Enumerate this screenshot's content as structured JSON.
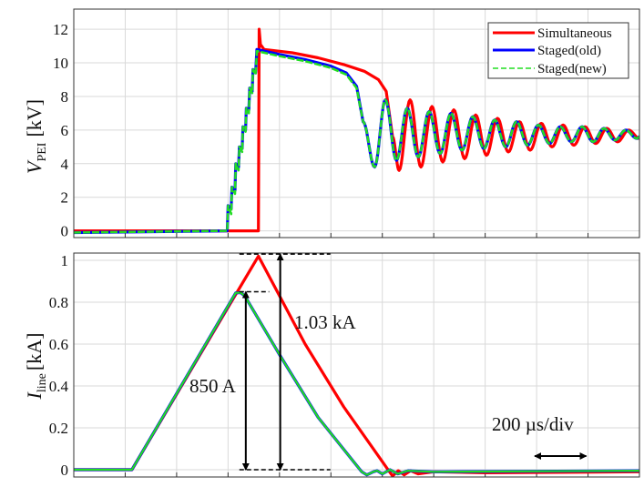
{
  "colors": {
    "simultaneous": "#ff0000",
    "staged_old": "#0000ff",
    "staged_new": "#22dd22",
    "grid": "#d9d9d9"
  },
  "chart_data": [
    {
      "type": "line",
      "title": "",
      "ylabel": {
        "main": "V",
        "sub": "PEI",
        "unit": "[kV]"
      },
      "xlabel": "",
      "x_unit": "µs",
      "xlim": [
        0,
        2200
      ],
      "ylim": [
        -0.4,
        13.2
      ],
      "xticks": [
        0,
        200,
        400,
        600,
        800,
        1000,
        1200,
        1400,
        1600,
        1800,
        2000,
        2200
      ],
      "yticks": [
        0,
        2,
        4,
        6,
        8,
        10,
        12
      ],
      "grid": true,
      "legend": {
        "placement": "top-right",
        "entries": [
          "Simultaneous",
          "Staged(old)",
          "Staged(new)"
        ]
      },
      "series": [
        {
          "name": "Simultaneous",
          "key": "simultaneous",
          "points": [
            [
              0,
              0
            ],
            [
              718,
              0
            ],
            [
              721,
              12.0
            ],
            [
              726,
              11.1
            ],
            [
              740,
              10.8
            ],
            [
              850,
              10.6
            ],
            [
              950,
              10.3
            ],
            [
              1050,
              9.9
            ],
            [
              1130,
              9.5
            ],
            [
              1185,
              9.0
            ],
            [
              1215,
              8.3
            ],
            [
              1240,
              5.6
            ]
          ],
          "oscillation": [
            [
              1265,
              3.6
            ],
            [
              1308,
              7.8
            ],
            [
              1350,
              3.8
            ],
            [
              1393,
              7.4
            ],
            [
              1435,
              4.1
            ],
            [
              1478,
              7.2
            ],
            [
              1520,
              4.3
            ],
            [
              1563,
              6.9
            ],
            [
              1605,
              4.5
            ],
            [
              1648,
              6.7
            ],
            [
              1690,
              4.7
            ],
            [
              1733,
              6.5
            ],
            [
              1775,
              4.8
            ],
            [
              1818,
              6.4
            ],
            [
              1860,
              5.0
            ],
            [
              1903,
              6.3
            ],
            [
              1945,
              5.1
            ],
            [
              1988,
              6.2
            ],
            [
              2030,
              5.2
            ],
            [
              2073,
              6.1
            ],
            [
              2115,
              5.3
            ],
            [
              2158,
              6.0
            ],
            [
              2200,
              5.5
            ]
          ]
        },
        {
          "name": "Staged(old)",
          "key": "staged_old",
          "points": [
            [
              0,
              -0.1
            ],
            [
              597,
              0
            ],
            [
              600,
              1.5
            ],
            [
              612,
              1.3
            ],
            [
              615,
              2.6
            ],
            [
              627,
              2.4
            ],
            [
              630,
              4.0
            ],
            [
              641,
              3.8
            ],
            [
              644,
              5.0
            ],
            [
              655,
              4.9
            ],
            [
              658,
              6.2
            ],
            [
              668,
              6.0
            ],
            [
              671,
              7.3
            ],
            [
              681,
              7.2
            ],
            [
              684,
              8.5
            ],
            [
              694,
              8.3
            ],
            [
              697,
              9.6
            ],
            [
              707,
              9.4
            ],
            [
              712,
              10.8
            ],
            [
              800,
              10.5
            ],
            [
              900,
              10.2
            ],
            [
              1000,
              9.8
            ],
            [
              1060,
              9.4
            ],
            [
              1100,
              8.6
            ],
            [
              1125,
              6.5
            ]
          ],
          "oscillation": [
            [
              1170,
              3.8
            ],
            [
              1212,
              7.8
            ],
            [
              1255,
              4.2
            ],
            [
              1297,
              7.3
            ],
            [
              1340,
              4.4
            ],
            [
              1382,
              7.1
            ],
            [
              1425,
              4.6
            ],
            [
              1467,
              7.0
            ],
            [
              1510,
              4.8
            ],
            [
              1552,
              6.8
            ],
            [
              1595,
              4.9
            ],
            [
              1637,
              6.6
            ],
            [
              1680,
              5.0
            ],
            [
              1722,
              6.5
            ],
            [
              1765,
              5.1
            ],
            [
              1807,
              6.3
            ],
            [
              1850,
              5.2
            ],
            [
              1892,
              6.2
            ],
            [
              1935,
              5.3
            ],
            [
              1977,
              6.2
            ],
            [
              2020,
              5.3
            ],
            [
              2062,
              6.1
            ],
            [
              2105,
              5.4
            ],
            [
              2147,
              6.0
            ],
            [
              2190,
              5.5
            ],
            [
              2200,
              5.6
            ]
          ]
        },
        {
          "name": "Staged(new)",
          "key": "staged_new",
          "dashed": true,
          "points": [
            [
              0,
              -0.1
            ],
            [
              597,
              0
            ],
            [
              600,
              1.5
            ],
            [
              612,
              1.0
            ],
            [
              615,
              2.6
            ],
            [
              627,
              2.2
            ],
            [
              630,
              4.0
            ],
            [
              641,
              3.6
            ],
            [
              644,
              5.0
            ],
            [
              655,
              4.7
            ],
            [
              658,
              6.2
            ],
            [
              668,
              5.9
            ],
            [
              671,
              7.3
            ],
            [
              681,
              7.0
            ],
            [
              684,
              8.5
            ],
            [
              694,
              8.2
            ],
            [
              697,
              9.6
            ],
            [
              707,
              9.3
            ],
            [
              712,
              10.7
            ],
            [
              800,
              10.4
            ],
            [
              900,
              10.1
            ],
            [
              1000,
              9.7
            ],
            [
              1060,
              9.3
            ],
            [
              1100,
              8.5
            ],
            [
              1125,
              6.5
            ]
          ],
          "oscillation": [
            [
              1170,
              3.8
            ],
            [
              1212,
              7.8
            ],
            [
              1255,
              4.2
            ],
            [
              1297,
              7.3
            ],
            [
              1340,
              4.4
            ],
            [
              1382,
              7.1
            ],
            [
              1425,
              4.6
            ],
            [
              1467,
              7.0
            ],
            [
              1510,
              4.8
            ],
            [
              1552,
              6.8
            ],
            [
              1595,
              4.9
            ],
            [
              1637,
              6.6
            ],
            [
              1680,
              5.0
            ],
            [
              1722,
              6.5
            ],
            [
              1765,
              5.1
            ],
            [
              1807,
              6.3
            ],
            [
              1850,
              5.2
            ],
            [
              1892,
              6.2
            ],
            [
              1935,
              5.3
            ],
            [
              1977,
              6.2
            ],
            [
              2020,
              5.3
            ],
            [
              2062,
              6.1
            ],
            [
              2105,
              5.4
            ],
            [
              2147,
              6.0
            ],
            [
              2190,
              5.5
            ],
            [
              2200,
              5.6
            ]
          ]
        }
      ]
    },
    {
      "type": "line",
      "title": "",
      "ylabel": {
        "main": "I",
        "sub": "line",
        "unit": "[kA]"
      },
      "xlabel": "",
      "x_unit": "µs",
      "xlim": [
        0,
        2200
      ],
      "ylim": [
        -0.035,
        1.035
      ],
      "xticks": [
        0,
        200,
        400,
        600,
        800,
        1000,
        1200,
        1400,
        1600,
        1800,
        2000,
        2200
      ],
      "yticks": [
        0,
        0.2,
        0.4,
        0.6,
        0.8,
        1
      ],
      "ytick_labels": [
        "0",
        "0.2",
        "0.4",
        "0.6",
        "0.8",
        "1"
      ],
      "grid": true,
      "series": [
        {
          "name": "Simultaneous",
          "key": "simultaneous",
          "points": [
            [
              0,
              0
            ],
            [
              226,
              0
            ],
            [
              718,
              1.02
            ],
            [
              900,
              0.6
            ],
            [
              1050,
              0.3
            ],
            [
              1228,
              -0.01
            ],
            [
              1240,
              -0.03
            ],
            [
              1262,
              -0.005
            ],
            [
              1285,
              -0.025
            ],
            [
              1310,
              -0.005
            ],
            [
              1340,
              -0.02
            ],
            [
              1400,
              -0.01
            ],
            [
              1600,
              -0.015
            ],
            [
              2200,
              -0.01
            ]
          ],
          "oscillation": []
        },
        {
          "name": "Staged(old)",
          "key": "staged_old",
          "points": [
            [
              0,
              0
            ],
            [
              226,
              0
            ],
            [
              630,
              0.845
            ],
            [
              650,
              0.845
            ],
            [
              665,
              0.83
            ],
            [
              800,
              0.55
            ],
            [
              950,
              0.25
            ],
            [
              1120,
              -0.01
            ],
            [
              1140,
              -0.025
            ],
            [
              1165,
              -0.01
            ],
            [
              1180,
              -0.005
            ],
            [
              1200,
              -0.02
            ],
            [
              1230,
              0
            ],
            [
              1260,
              -0.02
            ],
            [
              1300,
              -0.005
            ],
            [
              1400,
              -0.01
            ],
            [
              2200,
              -0.005
            ]
          ],
          "oscillation": []
        },
        {
          "name": "Staged(new)",
          "key": "staged_new",
          "solid_overlay": true,
          "points": [
            [
              0,
              0
            ],
            [
              226,
              0
            ],
            [
              630,
              0.845
            ],
            [
              650,
              0.845
            ],
            [
              665,
              0.83
            ],
            [
              800,
              0.55
            ],
            [
              950,
              0.25
            ],
            [
              1120,
              -0.01
            ],
            [
              1140,
              -0.025
            ],
            [
              1165,
              -0.01
            ],
            [
              1180,
              -0.005
            ],
            [
              1200,
              -0.02
            ],
            [
              1230,
              0
            ],
            [
              1260,
              -0.02
            ],
            [
              1300,
              -0.005
            ],
            [
              1400,
              -0.01
            ],
            [
              2200,
              -0.005
            ]
          ],
          "oscillation": []
        }
      ],
      "annotations": {
        "staged_peak_label": "850 A",
        "simultaneous_peak_label": "1.03 kA",
        "time_scale_label": "200 µs/div",
        "staged_peak_value": 0.85,
        "simultaneous_peak_value": 1.03,
        "time_scale_us": 200
      }
    }
  ]
}
